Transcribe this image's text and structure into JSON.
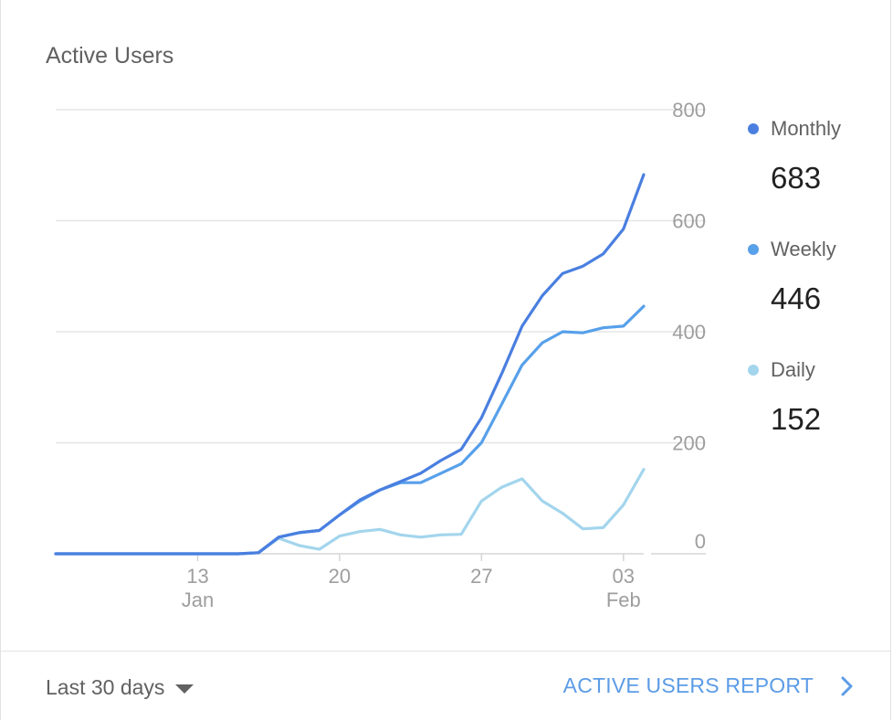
{
  "card": {
    "title": "Active Users"
  },
  "colors": {
    "monthly": "#4a7fe0",
    "weekly": "#57a0ea",
    "daily": "#a3d5ed",
    "grid": "#e6e6e6",
    "link": "#5c9ce6"
  },
  "legend": [
    {
      "label": "Monthly",
      "value": "683",
      "color": "#4a7fe0"
    },
    {
      "label": "Weekly",
      "value": "446",
      "color": "#57a0ea"
    },
    {
      "label": "Daily",
      "value": "152",
      "color": "#a3d5ed"
    }
  ],
  "footer": {
    "range_label": "Last 30 days",
    "report_label": "ACTIVE USERS REPORT"
  },
  "icons": {
    "range_toggle": "caret-down-icon",
    "report_link": "chevron-right-icon"
  },
  "chart_data": {
    "type": "line",
    "x": [
      "2019-01-06",
      "2019-01-07",
      "2019-01-08",
      "2019-01-09",
      "2019-01-10",
      "2019-01-11",
      "2019-01-12",
      "2019-01-13",
      "2019-01-14",
      "2019-01-15",
      "2019-01-16",
      "2019-01-17",
      "2019-01-18",
      "2019-01-19",
      "2019-01-20",
      "2019-01-21",
      "2019-01-22",
      "2019-01-23",
      "2019-01-24",
      "2019-01-25",
      "2019-01-26",
      "2019-01-27",
      "2019-01-28",
      "2019-01-29",
      "2019-01-30",
      "2019-01-31",
      "2019-02-01",
      "2019-02-02",
      "2019-02-03",
      "2019-02-04"
    ],
    "x_ticks": [
      {
        "x": "2019-01-13",
        "labels": [
          "13",
          "Jan"
        ]
      },
      {
        "x": "2019-01-20",
        "labels": [
          "20"
        ]
      },
      {
        "x": "2019-01-27",
        "labels": [
          "27"
        ]
      },
      {
        "x": "2019-02-03",
        "labels": [
          "03",
          "Feb"
        ]
      }
    ],
    "y_ticks": [
      0,
      200,
      400,
      600,
      800
    ],
    "ylim": [
      0,
      800
    ],
    "grid": true,
    "legend_position": "right",
    "series": [
      {
        "name": "Monthly",
        "color": "#4a7fe0",
        "values": [
          0,
          0,
          0,
          0,
          0,
          0,
          0,
          0,
          0,
          0,
          2,
          30,
          38,
          42,
          70,
          97,
          115,
          130,
          145,
          168,
          188,
          245,
          325,
          410,
          465,
          505,
          518,
          540,
          585,
          683
        ]
      },
      {
        "name": "Weekly",
        "color": "#57a0ea",
        "values": [
          0,
          0,
          0,
          0,
          0,
          0,
          0,
          0,
          0,
          0,
          2,
          30,
          38,
          42,
          70,
          95,
          115,
          128,
          128,
          145,
          162,
          200,
          270,
          340,
          380,
          400,
          398,
          407,
          410,
          446
        ]
      },
      {
        "name": "Daily",
        "color": "#a3d5ed",
        "values": [
          0,
          0,
          0,
          0,
          0,
          0,
          0,
          0,
          0,
          0,
          2,
          28,
          15,
          8,
          32,
          40,
          44,
          34,
          30,
          34,
          35,
          95,
          120,
          135,
          95,
          73,
          45,
          47,
          88,
          152
        ]
      }
    ]
  }
}
